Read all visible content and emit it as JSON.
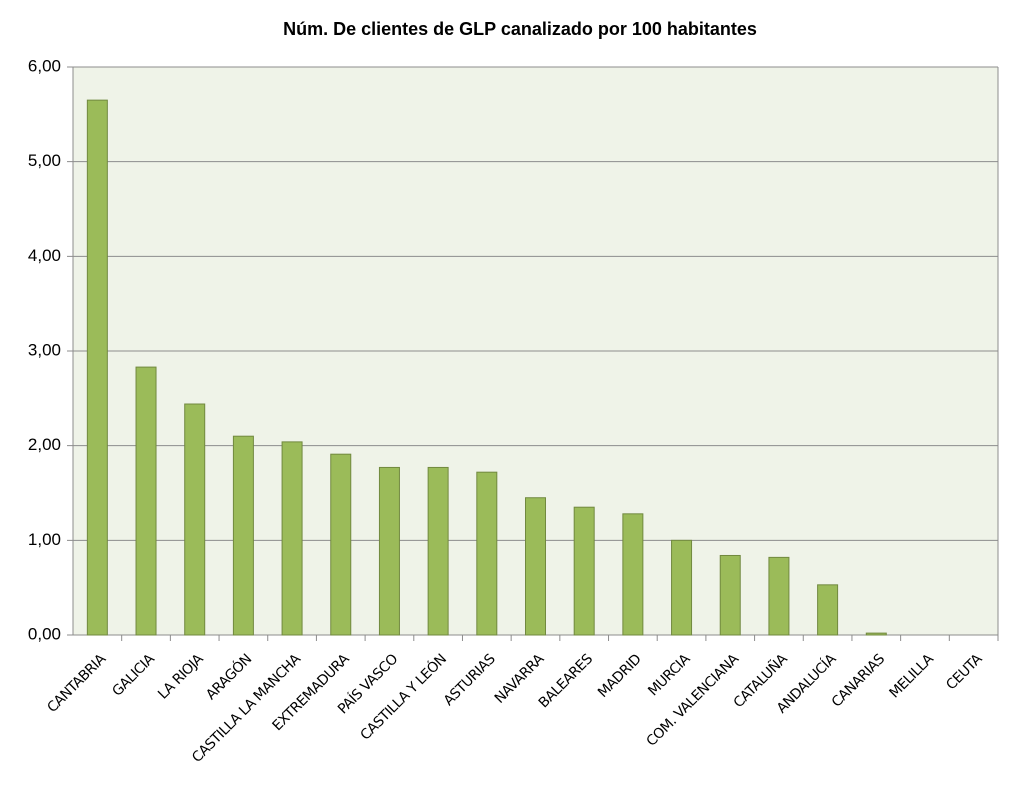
{
  "chart_data": {
    "type": "bar",
    "title": "Núm. De clientes de GLP canalizado por 100 habitantes",
    "categories": [
      "CANTABRIA",
      "GALICIA",
      "LA RIOJA",
      "ARAGÓN",
      "CASTILLA LA MANCHA",
      "EXTREMADURA",
      "PAÍS VASCO",
      "CASTILLA Y LEÓN",
      "ASTURIAS",
      "NAVARRA",
      "BALEARES",
      "MADRID",
      "MURCIA",
      "COM. VALENCIANA",
      "CATALUÑA",
      "ANDALUCÍA",
      "CANARIAS",
      "MELILLA",
      "CEUTA"
    ],
    "values": [
      5.65,
      2.83,
      2.44,
      2.1,
      2.04,
      1.91,
      1.77,
      1.77,
      1.72,
      1.45,
      1.35,
      1.28,
      1.0,
      0.84,
      0.82,
      0.53,
      0.02,
      0,
      0
    ],
    "color": "#9bbb59",
    "ylim": [
      0,
      6
    ],
    "yticks": [
      {
        "value": 0,
        "label": "0,00"
      },
      {
        "value": 1,
        "label": "1,00"
      },
      {
        "value": 2,
        "label": "2,00"
      },
      {
        "value": 3,
        "label": "3,00"
      },
      {
        "value": 4,
        "label": "4,00"
      },
      {
        "value": 5,
        "label": "5,00"
      },
      {
        "value": 6,
        "label": "6,00"
      }
    ],
    "grid": true
  }
}
